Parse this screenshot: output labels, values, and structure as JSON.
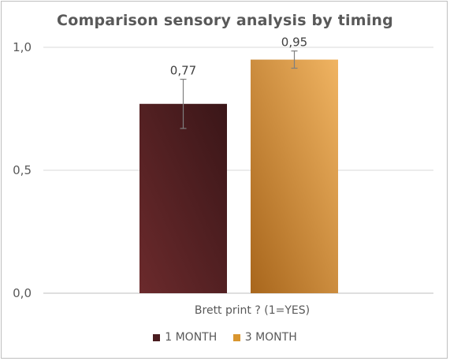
{
  "chart_data": {
    "type": "bar",
    "title": "Comparison sensory analysis by timing",
    "categories": [
      "Brett print ? (1=YES)"
    ],
    "series": [
      {
        "name": "1 MONTH",
        "values": [
          0.77
        ],
        "error": [
          0.1
        ],
        "label": "0,77",
        "color": "#4a1c1f"
      },
      {
        "name": "3 MONTH",
        "values": [
          0.95
        ],
        "error": [
          0.035
        ],
        "label": "0,95",
        "color": "#d9962f"
      }
    ],
    "yticks": [
      "1,0",
      "0,5",
      "0,0"
    ],
    "ylim": [
      0,
      1.0
    ],
    "grid": true,
    "legend": "bottom"
  }
}
